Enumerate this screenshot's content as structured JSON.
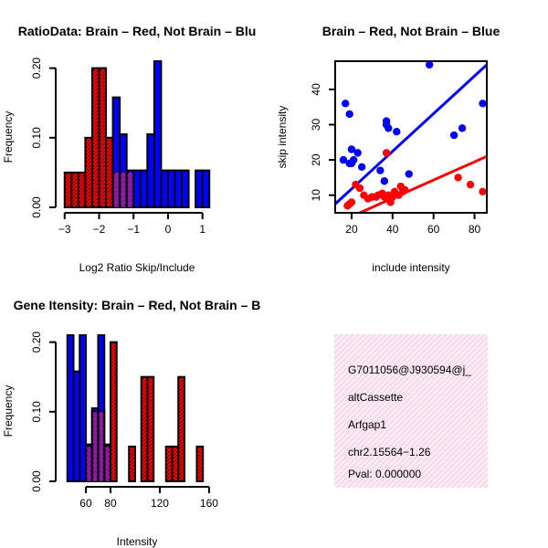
{
  "chart_data": [
    {
      "type": "bar",
      "title": "RatioData: Brain – Red, Not Brain – Blu",
      "xlabel": "Log2 Ratio Skip/Include",
      "ylabel": "Frequency",
      "xlim": [
        -3.1,
        1.3
      ],
      "ylim": [
        0,
        0.21
      ],
      "xticks": [
        -3,
        -2,
        -1,
        0,
        1
      ],
      "xtick_labels": [
        "−3",
        "−2",
        "−1",
        "0",
        "1"
      ],
      "yticks": [
        0,
        0.1,
        0.2
      ],
      "ytick_labels": [
        "0.00",
        "0.10",
        "0.20"
      ],
      "series": [
        {
          "name": "Brain",
          "color": "#ff0000",
          "bin_width": 0.2,
          "bins": [
            -3.0,
            -2.8,
            -2.6,
            -2.4,
            -2.2,
            -2.0,
            -1.8,
            -1.6,
            -1.4,
            -1.2
          ],
          "values": [
            0.05,
            0.05,
            0.05,
            0.1,
            0.2,
            0.2,
            0.1,
            0.05,
            0.05,
            0.05
          ]
        },
        {
          "name": "Not Brain",
          "color": "#0000ff",
          "bin_width": 0.2,
          "bins": [
            -1.6,
            -1.4,
            -1.2,
            -1.0,
            -0.8,
            -0.6,
            -0.4,
            -0.2,
            0.0,
            0.2,
            0.4,
            0.8,
            1.0
          ],
          "values": [
            0.158,
            0.105,
            0.053,
            0.053,
            0.053,
            0.105,
            0.21,
            0.053,
            0.053,
            0.053,
            0.053,
            0.053,
            0.053
          ]
        }
      ]
    },
    {
      "type": "scatter",
      "title": "Brain – Red, Not Brain – Blue",
      "xlabel": "include intensity",
      "ylabel": "skip intensity",
      "xlim": [
        12,
        86
      ],
      "ylim": [
        5,
        48
      ],
      "xticks": [
        20,
        40,
        60,
        80
      ],
      "xtick_labels": [
        "20",
        "40",
        "60",
        "80"
      ],
      "yticks": [
        10,
        20,
        30,
        40
      ],
      "ytick_labels": [
        "10",
        "20",
        "30",
        "40"
      ],
      "series": [
        {
          "name": "Not Brain",
          "color": "#0000ff",
          "x": [
            16,
            17,
            19,
            19,
            20,
            20,
            21,
            23,
            25,
            34,
            36,
            37,
            37,
            38,
            42,
            48,
            58,
            70,
            74,
            84
          ],
          "y": [
            20,
            36,
            33,
            19,
            23,
            19,
            20,
            22,
            18,
            17,
            14,
            30,
            31,
            29,
            28,
            16,
            47,
            27,
            29,
            36
          ],
          "fit": [
            [
              12,
              7.5
            ],
            [
              86,
              47.0
            ]
          ]
        },
        {
          "name": "Brain",
          "color": "#ff0000",
          "x": [
            18,
            19,
            20,
            22,
            24,
            26,
            28,
            30,
            32,
            33,
            35,
            36,
            37,
            38,
            39,
            40,
            41,
            43,
            44,
            45,
            46,
            72,
            78,
            84
          ],
          "y": [
            7,
            7.5,
            8,
            13,
            12,
            10,
            9,
            9.5,
            9.5,
            10,
            10.5,
            9.5,
            22,
            10,
            8,
            9.5,
            11,
            10,
            12.5,
            11,
            11.5,
            15,
            13,
            11
          ],
          "fit": [
            [
              24,
              5.0
            ],
            [
              86,
              21.0
            ]
          ]
        }
      ]
    },
    {
      "type": "bar",
      "title": "Gene Itensity: Brain – Red, Not Brain – B",
      "xlabel": "Intensity",
      "ylabel": "Frequency",
      "xlim": [
        40,
        163
      ],
      "ylim": [
        0,
        0.21
      ],
      "xticks": [
        60,
        80,
        120,
        160
      ],
      "xtick_labels": [
        "60",
        "80",
        "120",
        "160"
      ],
      "yticks": [
        0,
        0.1,
        0.2
      ],
      "ytick_labels": [
        "0.00",
        "0.10",
        "0.20"
      ],
      "series": [
        {
          "name": "Not Brain",
          "color": "#0000ff",
          "bin_width": 5,
          "bins": [
            45,
            50,
            55,
            60,
            65,
            70,
            75
          ],
          "values": [
            0.21,
            0.158,
            0.21,
            0.053,
            0.105,
            0.21,
            0.053
          ]
        },
        {
          "name": "Brain",
          "color": "#ff0000",
          "bin_width": 5,
          "bins": [
            60,
            65,
            70,
            75,
            80,
            95,
            105,
            110,
            125,
            130,
            135,
            150
          ],
          "values": [
            0.05,
            0.1,
            0.1,
            0.05,
            0.2,
            0.05,
            0.15,
            0.15,
            0.05,
            0.05,
            0.15,
            0.05
          ]
        }
      ]
    }
  ],
  "info_box": {
    "lines": [
      "G7011056@J930594@j_",
      "altCassette",
      "Arfgap1",
      "chr2.15564−1.26"
    ],
    "pval": "Pval: 0.000000",
    "pval_color": "#cc0000",
    "background": "#f7dceb"
  }
}
